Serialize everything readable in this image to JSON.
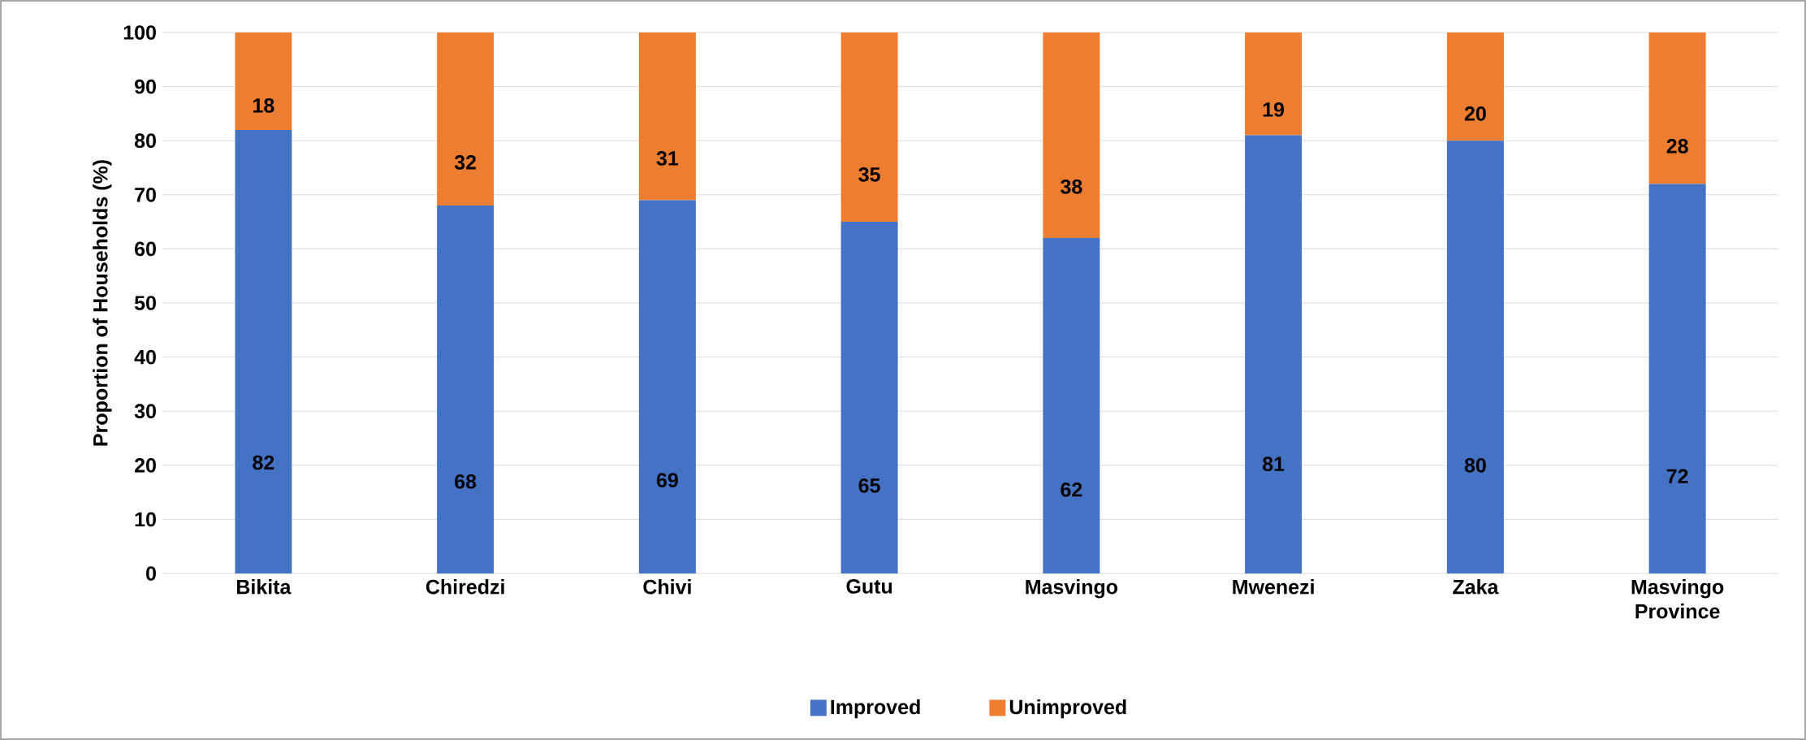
{
  "chart_data": {
    "type": "bar",
    "stacked": true,
    "ylabel": "Proportion of Households (%)",
    "categories": [
      "Bikita",
      "Chiredzi",
      "Chivi",
      "Gutu",
      "Masvingo",
      "Mwenezi",
      "Zaka",
      "Masvingo Province"
    ],
    "series": [
      {
        "name": "Improved",
        "color": "#4472c4",
        "values": [
          82,
          68,
          69,
          65,
          62,
          81,
          80,
          72
        ]
      },
      {
        "name": "Unimproved",
        "color": "#ed7d31",
        "values": [
          18,
          32,
          31,
          35,
          38,
          19,
          20,
          28
        ]
      }
    ],
    "ylim": [
      0,
      100
    ],
    "yticks": [
      0,
      10,
      20,
      30,
      40,
      50,
      60,
      70,
      80,
      90,
      100
    ],
    "grid": "y",
    "legend": "bottom",
    "data_labels": true
  }
}
